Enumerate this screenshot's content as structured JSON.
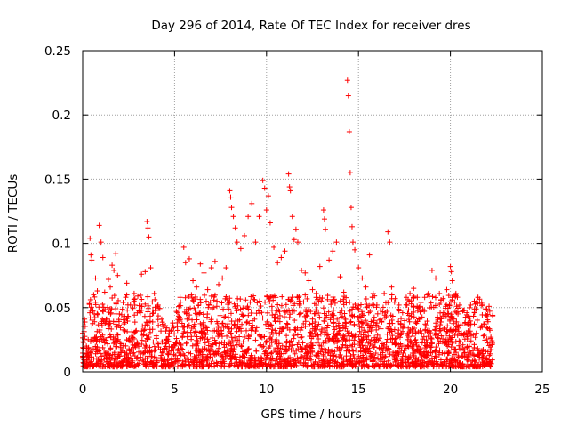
{
  "chart_data": {
    "type": "scatter",
    "title": "Day 296 of 2014, Rate Of TEC Index for receiver dres",
    "xlabel": "GPS time / hours",
    "ylabel": "ROTI / TECUs",
    "xlim": [
      0,
      25
    ],
    "ylim": [
      0,
      0.25
    ],
    "xticks": [
      0,
      5,
      10,
      15,
      20,
      25
    ],
    "xtick_labels": [
      "0",
      "5",
      "10",
      "15",
      "20",
      "25"
    ],
    "yticks": [
      0,
      0.05,
      0.1,
      0.15,
      0.2,
      0.25
    ],
    "ytick_labels": [
      "0",
      "0.05",
      "0.1",
      "0.15",
      "0.2",
      "0.25"
    ],
    "grid": true,
    "marker": "+",
    "color": "#ff0000",
    "series": [
      {
        "points": [
          [
            0.0,
            0.03
          ],
          [
            0.1,
            0.041
          ],
          [
            0.2,
            0.02
          ],
          [
            0.3,
            0.025
          ],
          [
            0.4,
            0.104
          ],
          [
            0.45,
            0.091
          ],
          [
            0.5,
            0.087
          ],
          [
            0.55,
            0.048
          ],
          [
            0.6,
            0.06
          ],
          [
            0.7,
            0.073
          ],
          [
            0.8,
            0.063
          ],
          [
            0.9,
            0.114
          ],
          [
            1.0,
            0.101
          ],
          [
            1.1,
            0.089
          ],
          [
            1.2,
            0.062
          ],
          [
            1.3,
            0.041
          ],
          [
            1.4,
            0.072
          ],
          [
            1.5,
            0.066
          ],
          [
            1.6,
            0.083
          ],
          [
            1.7,
            0.079
          ],
          [
            1.8,
            0.092
          ],
          [
            1.9,
            0.075
          ],
          [
            2.0,
            0.045
          ],
          [
            2.2,
            0.054
          ],
          [
            2.4,
            0.069
          ],
          [
            2.6,
            0.052
          ],
          [
            2.8,
            0.061
          ],
          [
            3.0,
            0.059
          ],
          [
            3.2,
            0.076
          ],
          [
            3.4,
            0.078
          ],
          [
            3.5,
            0.117
          ],
          [
            3.55,
            0.112
          ],
          [
            3.6,
            0.105
          ],
          [
            3.7,
            0.081
          ],
          [
            3.9,
            0.061
          ],
          [
            4.1,
            0.052
          ],
          [
            4.3,
            0.041
          ],
          [
            4.5,
            0.036
          ],
          [
            4.7,
            0.032
          ],
          [
            4.9,
            0.038
          ],
          [
            5.1,
            0.047
          ],
          [
            5.3,
            0.058
          ],
          [
            5.5,
            0.097
          ],
          [
            5.6,
            0.085
          ],
          [
            5.8,
            0.088
          ],
          [
            6.0,
            0.071
          ],
          [
            6.2,
            0.066
          ],
          [
            6.4,
            0.084
          ],
          [
            6.6,
            0.077
          ],
          [
            6.8,
            0.064
          ],
          [
            7.0,
            0.081
          ],
          [
            7.2,
            0.086
          ],
          [
            7.4,
            0.068
          ],
          [
            7.6,
            0.073
          ],
          [
            7.8,
            0.081
          ],
          [
            8.0,
            0.141
          ],
          [
            8.05,
            0.136
          ],
          [
            8.1,
            0.128
          ],
          [
            8.2,
            0.121
          ],
          [
            8.3,
            0.112
          ],
          [
            8.4,
            0.101
          ],
          [
            8.6,
            0.096
          ],
          [
            8.8,
            0.106
          ],
          [
            9.0,
            0.121
          ],
          [
            9.2,
            0.131
          ],
          [
            9.4,
            0.101
          ],
          [
            9.6,
            0.121
          ],
          [
            9.8,
            0.149
          ],
          [
            9.9,
            0.143
          ],
          [
            10.0,
            0.126
          ],
          [
            10.1,
            0.137
          ],
          [
            10.2,
            0.116
          ],
          [
            10.4,
            0.097
          ],
          [
            10.6,
            0.085
          ],
          [
            10.8,
            0.089
          ],
          [
            11.0,
            0.094
          ],
          [
            11.2,
            0.154
          ],
          [
            11.25,
            0.144
          ],
          [
            11.3,
            0.141
          ],
          [
            11.4,
            0.121
          ],
          [
            11.5,
            0.103
          ],
          [
            11.6,
            0.111
          ],
          [
            11.7,
            0.101
          ],
          [
            11.9,
            0.079
          ],
          [
            12.1,
            0.077
          ],
          [
            12.3,
            0.071
          ],
          [
            12.5,
            0.064
          ],
          [
            12.7,
            0.061
          ],
          [
            12.9,
            0.082
          ],
          [
            13.1,
            0.126
          ],
          [
            13.15,
            0.119
          ],
          [
            13.2,
            0.111
          ],
          [
            13.4,
            0.087
          ],
          [
            13.6,
            0.094
          ],
          [
            13.8,
            0.101
          ],
          [
            14.0,
            0.074
          ],
          [
            14.2,
            0.062
          ],
          [
            14.4,
            0.227
          ],
          [
            14.45,
            0.215
          ],
          [
            14.5,
            0.187
          ],
          [
            14.55,
            0.155
          ],
          [
            14.6,
            0.128
          ],
          [
            14.65,
            0.113
          ],
          [
            14.7,
            0.101
          ],
          [
            14.8,
            0.095
          ],
          [
            15.0,
            0.081
          ],
          [
            15.2,
            0.073
          ],
          [
            15.4,
            0.066
          ],
          [
            15.6,
            0.091
          ],
          [
            15.8,
            0.061
          ],
          [
            16.0,
            0.052
          ],
          [
            16.2,
            0.048
          ],
          [
            16.4,
            0.061
          ],
          [
            16.6,
            0.109
          ],
          [
            16.7,
            0.101
          ],
          [
            16.8,
            0.066
          ],
          [
            17.0,
            0.057
          ],
          [
            17.2,
            0.052
          ],
          [
            17.4,
            0.046
          ],
          [
            17.6,
            0.058
          ],
          [
            17.8,
            0.061
          ],
          [
            18.0,
            0.065
          ],
          [
            18.2,
            0.058
          ],
          [
            18.4,
            0.054
          ],
          [
            18.6,
            0.058
          ],
          [
            18.8,
            0.061
          ],
          [
            19.0,
            0.079
          ],
          [
            19.2,
            0.073
          ],
          [
            19.4,
            0.061
          ],
          [
            19.6,
            0.057
          ],
          [
            19.8,
            0.064
          ],
          [
            20.0,
            0.082
          ],
          [
            20.05,
            0.078
          ],
          [
            20.1,
            0.071
          ],
          [
            20.3,
            0.061
          ],
          [
            20.5,
            0.052
          ],
          [
            20.7,
            0.048
          ],
          [
            20.9,
            0.046
          ],
          [
            21.1,
            0.052
          ],
          [
            21.3,
            0.055
          ],
          [
            21.5,
            0.058
          ],
          [
            21.7,
            0.054
          ],
          [
            21.9,
            0.049
          ],
          [
            22.1,
            0.051
          ],
          [
            22.3,
            0.044
          ]
        ]
      }
    ]
  }
}
